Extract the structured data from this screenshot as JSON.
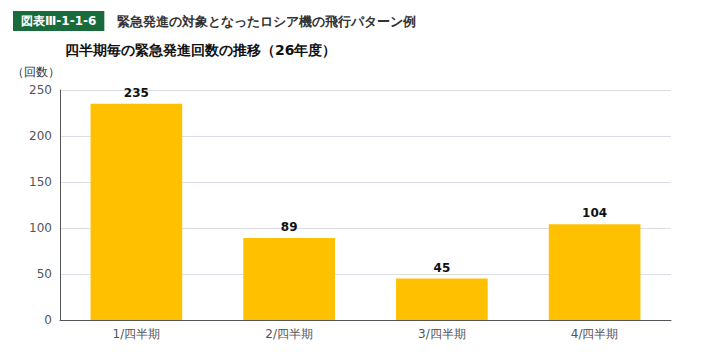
{
  "chart_data": {
    "type": "bar",
    "annotations": [
      "図表Ⅲ-1-1-6",
      "緊急発進の対象となったロシア機の飛行パターン例"
    ],
    "title": "四半期毎の緊急発進回数の推移（26年度）",
    "ylabel": "（回数）",
    "categories": [
      "1/四半期",
      "2/四半期",
      "3/四半期",
      "4/四半期"
    ],
    "values": [
      235,
      89,
      45,
      104
    ],
    "color": "#FFC000",
    "ylim": [
      0,
      250
    ],
    "yticks": [
      0,
      50,
      100,
      150,
      200,
      250
    ],
    "grid": true,
    "data_labels": true
  }
}
